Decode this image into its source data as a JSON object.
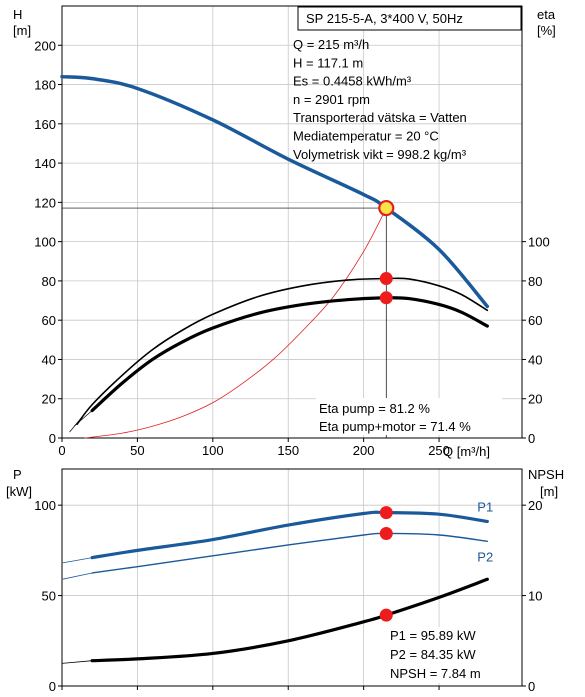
{
  "chart_data": [
    {
      "type": "line",
      "title": "SP 215-5-A, 3*400 V, 50Hz",
      "xlabel": "Q [m³/h]",
      "ylabel_left": [
        "H",
        "[m]"
      ],
      "ylabel_right": [
        "eta",
        "[%]"
      ],
      "xlim": [
        0,
        305
      ],
      "ylim_left": [
        0,
        220
      ],
      "ylim_right": [
        0,
        220
      ],
      "xticks": [
        0,
        50,
        100,
        150,
        200,
        250
      ],
      "yticks_left": [
        0,
        20,
        40,
        60,
        80,
        100,
        120,
        140,
        160,
        180,
        200
      ],
      "yticks_right": [
        0,
        20,
        40,
        60,
        80,
        100
      ],
      "grid": true,
      "info_lines": [
        "Q = 215 m³/h",
        "H = 117.1 m",
        "Es = 0.4458 kWh/m³",
        "n = 2901 rpm",
        "Transporterad vätska = Vatten",
        "Mediatemperatur = 20 °C",
        "Volymetrisk vikt = 998.2 kg/m³"
      ],
      "eta_lines": [
        "Eta pump = 81.2 %",
        "Eta pump+motor = 71.4 %"
      ],
      "series": [
        {
          "key": "H",
          "color": "#1a5a9a",
          "width": 3.5,
          "x": [
            0,
            20,
            50,
            100,
            150,
            200,
            215,
            250,
            282
          ],
          "y": [
            184,
            183,
            178,
            162,
            142,
            124,
            117.1,
            96,
            67
          ]
        },
        {
          "key": "system",
          "color": "#e02020",
          "width": 0.8,
          "x": [
            15,
            40,
            60,
            80,
            100,
            120,
            140,
            160,
            180,
            200,
            215
          ],
          "y": [
            0,
            2.5,
            6,
            11,
            18,
            28,
            40,
            55,
            72,
            95,
            117.1
          ]
        },
        {
          "key": "eta_pump",
          "color": "#000000",
          "width": 1.6,
          "x": [
            10,
            20,
            40,
            60,
            80,
            100,
            130,
            160,
            190,
            215,
            230,
            250,
            265,
            282
          ],
          "y": [
            7,
            17,
            32,
            45,
            55,
            63,
            72,
            77.5,
            80.5,
            81.2,
            81,
            77.5,
            73,
            65
          ]
        },
        {
          "key": "eta_pump_motor",
          "color": "#000000",
          "width": 3.2,
          "x": [
            20,
            40,
            60,
            80,
            100,
            130,
            160,
            190,
            215,
            230,
            250,
            265,
            282
          ],
          "y": [
            14,
            28,
            40,
            49,
            56,
            63.5,
            68,
            70.5,
            71.4,
            71,
            68,
            64,
            57
          ]
        }
      ],
      "op_points": [
        {
          "x": 215,
          "y": 117.1,
          "style": "ring"
        },
        {
          "x": 215,
          "y": 81.2,
          "style": "dot"
        },
        {
          "x": 215,
          "y": 71.4,
          "style": "dot"
        }
      ]
    },
    {
      "type": "line",
      "ylabel_left": [
        "P",
        "[kW]"
      ],
      "ylabel_right": [
        "NPSH",
        "[m]"
      ],
      "xlim": [
        0,
        305
      ],
      "ylim_left": [
        0,
        120
      ],
      "ylim_right": [
        0,
        24
      ],
      "yticks_left": [
        0,
        50,
        100
      ],
      "yticks_right": [
        0,
        10,
        20
      ],
      "grid": true,
      "info_lines": [
        "P1 = 95.89 kW",
        "P2 = 84.35 kW",
        "NPSH = 7.84 m"
      ],
      "series": [
        {
          "key": "P1",
          "name": "P1",
          "color": "#1a5a9a",
          "width": 3.2,
          "x": [
            20,
            50,
            100,
            150,
            200,
            215,
            250,
            282
          ],
          "y": [
            71,
            75,
            81,
            89,
            95.4,
            95.9,
            95,
            91
          ]
        },
        {
          "key": "P1_ext",
          "color": "#1a5a9a",
          "width": 0.8,
          "x": [
            0,
            20
          ],
          "y": [
            68,
            71
          ]
        },
        {
          "key": "P2",
          "name": "P2",
          "color": "#1a5a9a",
          "width": 1.4,
          "x": [
            20,
            50,
            100,
            150,
            200,
            215,
            250,
            282
          ],
          "y": [
            62.5,
            66,
            72,
            78,
            83.5,
            84.35,
            83.5,
            80
          ]
        },
        {
          "key": "P2_ext",
          "color": "#1a5a9a",
          "width": 0.8,
          "x": [
            0,
            20
          ],
          "y": [
            59,
            62.5
          ]
        },
        {
          "key": "NPSH",
          "color": "#000000",
          "width": 3.2,
          "axis": "right",
          "x": [
            20,
            50,
            100,
            150,
            200,
            215,
            250,
            282
          ],
          "y": [
            2.8,
            3.0,
            3.6,
            5.0,
            7.1,
            7.84,
            9.8,
            11.8
          ]
        },
        {
          "key": "NPSH_ext",
          "color": "#000000",
          "width": 0.8,
          "axis": "right",
          "x": [
            0,
            20
          ],
          "y": [
            2.5,
            2.8
          ]
        }
      ],
      "op_points": [
        {
          "x": 215,
          "y": 95.89,
          "style": "dot"
        },
        {
          "x": 215,
          "y": 84.35,
          "style": "dot"
        },
        {
          "x": 215,
          "y": 7.84,
          "axis": "right",
          "style": "dot"
        }
      ]
    }
  ]
}
